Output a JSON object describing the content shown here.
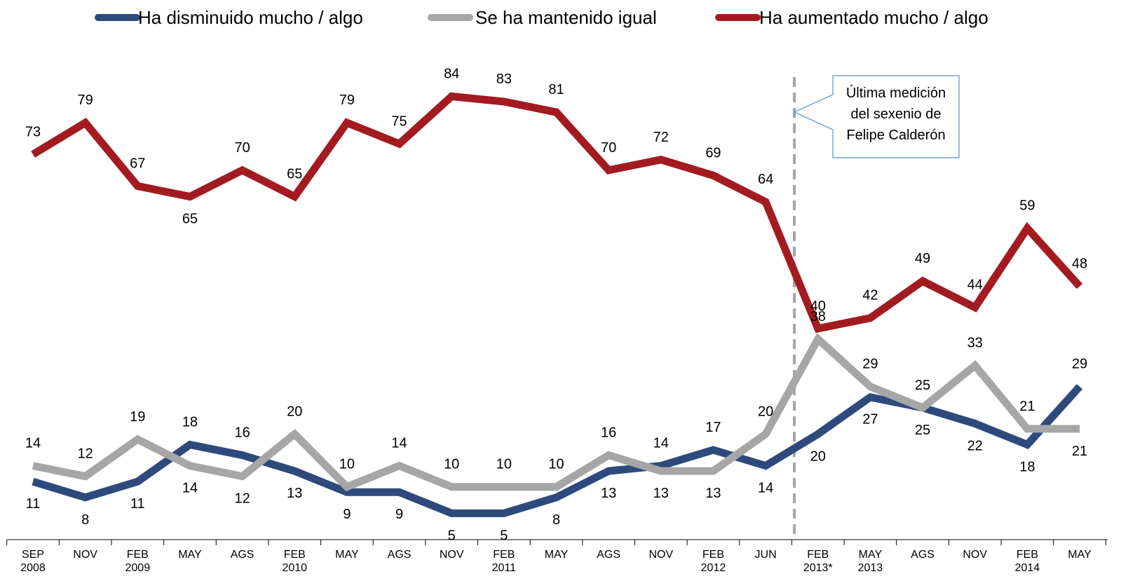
{
  "chart_data": {
    "type": "line",
    "categories": [
      "SEP\n2008",
      "NOV",
      "FEB\n2009",
      "MAY",
      "AGS",
      "FEB\n2010",
      "MAY",
      "AGS",
      "NOV",
      "FEB\n2011",
      "MAY",
      "AGS",
      "NOV",
      "FEB\n2012",
      "JUN",
      "FEB\n2013*",
      "MAY\n2013",
      "AGS",
      "NOV",
      "FEB\n2014",
      "MAY"
    ],
    "series": [
      {
        "name": "Ha disminuido mucho / algo",
        "color": "#2e4a7d",
        "values": [
          11,
          8,
          11,
          18,
          16,
          13,
          9,
          9,
          5,
          5,
          8,
          13,
          14,
          17,
          14,
          20,
          27,
          25,
          22,
          18,
          29
        ]
      },
      {
        "name": "Se ha mantenido igual",
        "color": "#a6a6a6",
        "values": [
          14,
          12,
          19,
          14,
          12,
          20,
          10,
          14,
          10,
          10,
          10,
          16,
          13,
          13,
          20,
          38,
          29,
          25,
          33,
          21,
          21
        ]
      },
      {
        "name": "Ha aumentado mucho / algo",
        "color": "#a31b21",
        "values": [
          73,
          79,
          67,
          65,
          70,
          65,
          79,
          75,
          84,
          83,
          81,
          70,
          72,
          69,
          64,
          40,
          42,
          49,
          44,
          59,
          48
        ]
      }
    ],
    "annotation": "Última medición\ndel sexenio de\nFelipe Calderón",
    "legend": "top"
  }
}
